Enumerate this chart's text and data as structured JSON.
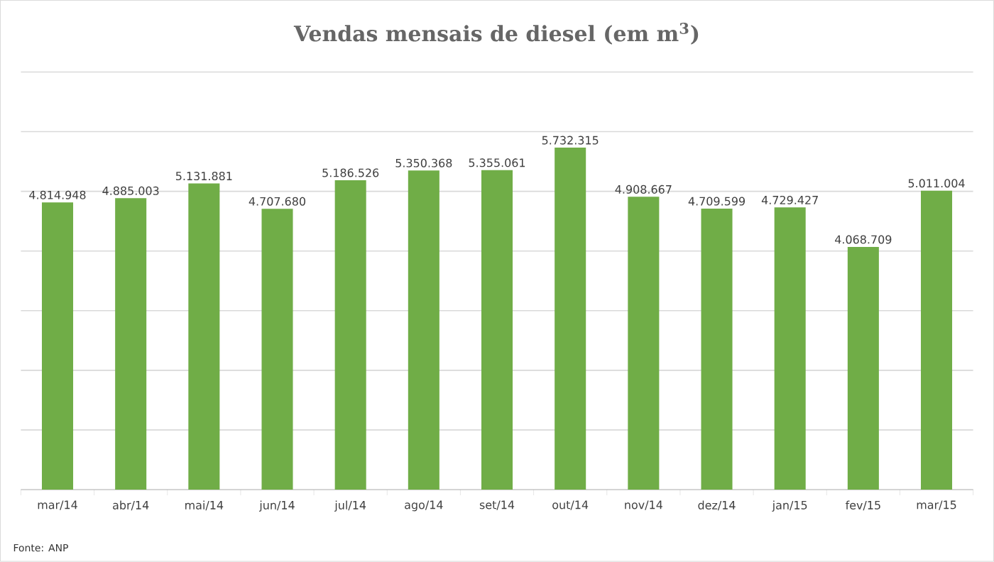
{
  "chart_data": {
    "type": "bar",
    "title": "Vendas mensais de diesel (em m$^{3}$)",
    "categories": [
      "mar/14",
      "abr/14",
      "mai/14",
      "jun/14",
      "jul/14",
      "ago/14",
      "set/14",
      "out/14",
      "nov/14",
      "dez/14",
      "jan/15",
      "fev/15",
      "mar/15"
    ],
    "values": [
      4814948,
      4885003,
      5131881,
      4707680,
      5186526,
      5350368,
      5355061,
      5732315,
      4908667,
      4709599,
      4729427,
      4068709,
      5011004
    ],
    "value_labels": [
      "4.814.948",
      "4.885.003",
      "5.131.881",
      "4.707.680",
      "5.186.526",
      "5.350.368",
      "5.355.061",
      "5.732.315",
      "4.908.667",
      "4.709.599",
      "4.729.427",
      "4.068.709",
      "5.011.004"
    ],
    "color": "#70ad47",
    "ylim": [
      0,
      7000000
    ],
    "yticks": [
      {
        "value": 0,
        "label": null
      },
      {
        "value": 1000000,
        "label": null
      },
      {
        "value": 2000000,
        "label": null
      },
      {
        "value": 3000000,
        "label": null
      },
      {
        "value": 4000000,
        "label": null
      },
      {
        "value": 5000000,
        "label": null
      },
      {
        "value": 6000000,
        "label": null
      },
      {
        "value": 7000000,
        "label": null
      }
    ],
    "tick_labels": "x",
    "grid": "y",
    "annotations": [
      "Fonte: ANP"
    ]
  }
}
